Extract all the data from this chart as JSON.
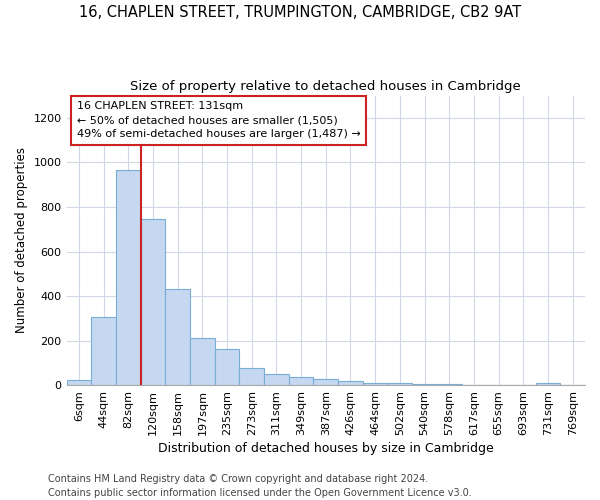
{
  "title1": "16, CHAPLEN STREET, TRUMPINGTON, CAMBRIDGE, CB2 9AT",
  "title2": "Size of property relative to detached houses in Cambridge",
  "xlabel": "Distribution of detached houses by size in Cambridge",
  "ylabel": "Number of detached properties",
  "categories": [
    "6sqm",
    "44sqm",
    "82sqm",
    "120sqm",
    "158sqm",
    "197sqm",
    "235sqm",
    "273sqm",
    "311sqm",
    "349sqm",
    "387sqm",
    "426sqm",
    "464sqm",
    "502sqm",
    "540sqm",
    "578sqm",
    "617sqm",
    "655sqm",
    "693sqm",
    "731sqm",
    "769sqm"
  ],
  "values": [
    25,
    308,
    965,
    748,
    432,
    212,
    163,
    78,
    50,
    35,
    30,
    18,
    12,
    8,
    5,
    5,
    3,
    2,
    2,
    10,
    2
  ],
  "bar_color": "#c5d8f0",
  "bar_edge_color": "#7aadd4",
  "red_line_index": 3,
  "annotation_title": "16 CHAPLEN STREET: 131sqm",
  "annotation_line1": "← 50% of detached houses are smaller (1,505)",
  "annotation_line2": "49% of semi-detached houses are larger (1,487) →",
  "annotation_box_facecolor": "#ffffff",
  "annotation_box_edgecolor": "#cc2222",
  "red_line_color": "#cc2222",
  "ylim": [
    0,
    1300
  ],
  "yticks": [
    0,
    200,
    400,
    600,
    800,
    1000,
    1200
  ],
  "footer1": "Contains HM Land Registry data © Crown copyright and database right 2024.",
  "footer2": "Contains public sector information licensed under the Open Government Licence v3.0.",
  "background_color": "#ffffff",
  "plot_bg_color": "#ffffff",
  "grid_color": "#d0d8e8",
  "title1_fontsize": 10.5,
  "title2_fontsize": 9.5,
  "xlabel_fontsize": 9,
  "ylabel_fontsize": 8.5,
  "tick_fontsize": 8,
  "annot_fontsize": 8,
  "footer_fontsize": 7
}
